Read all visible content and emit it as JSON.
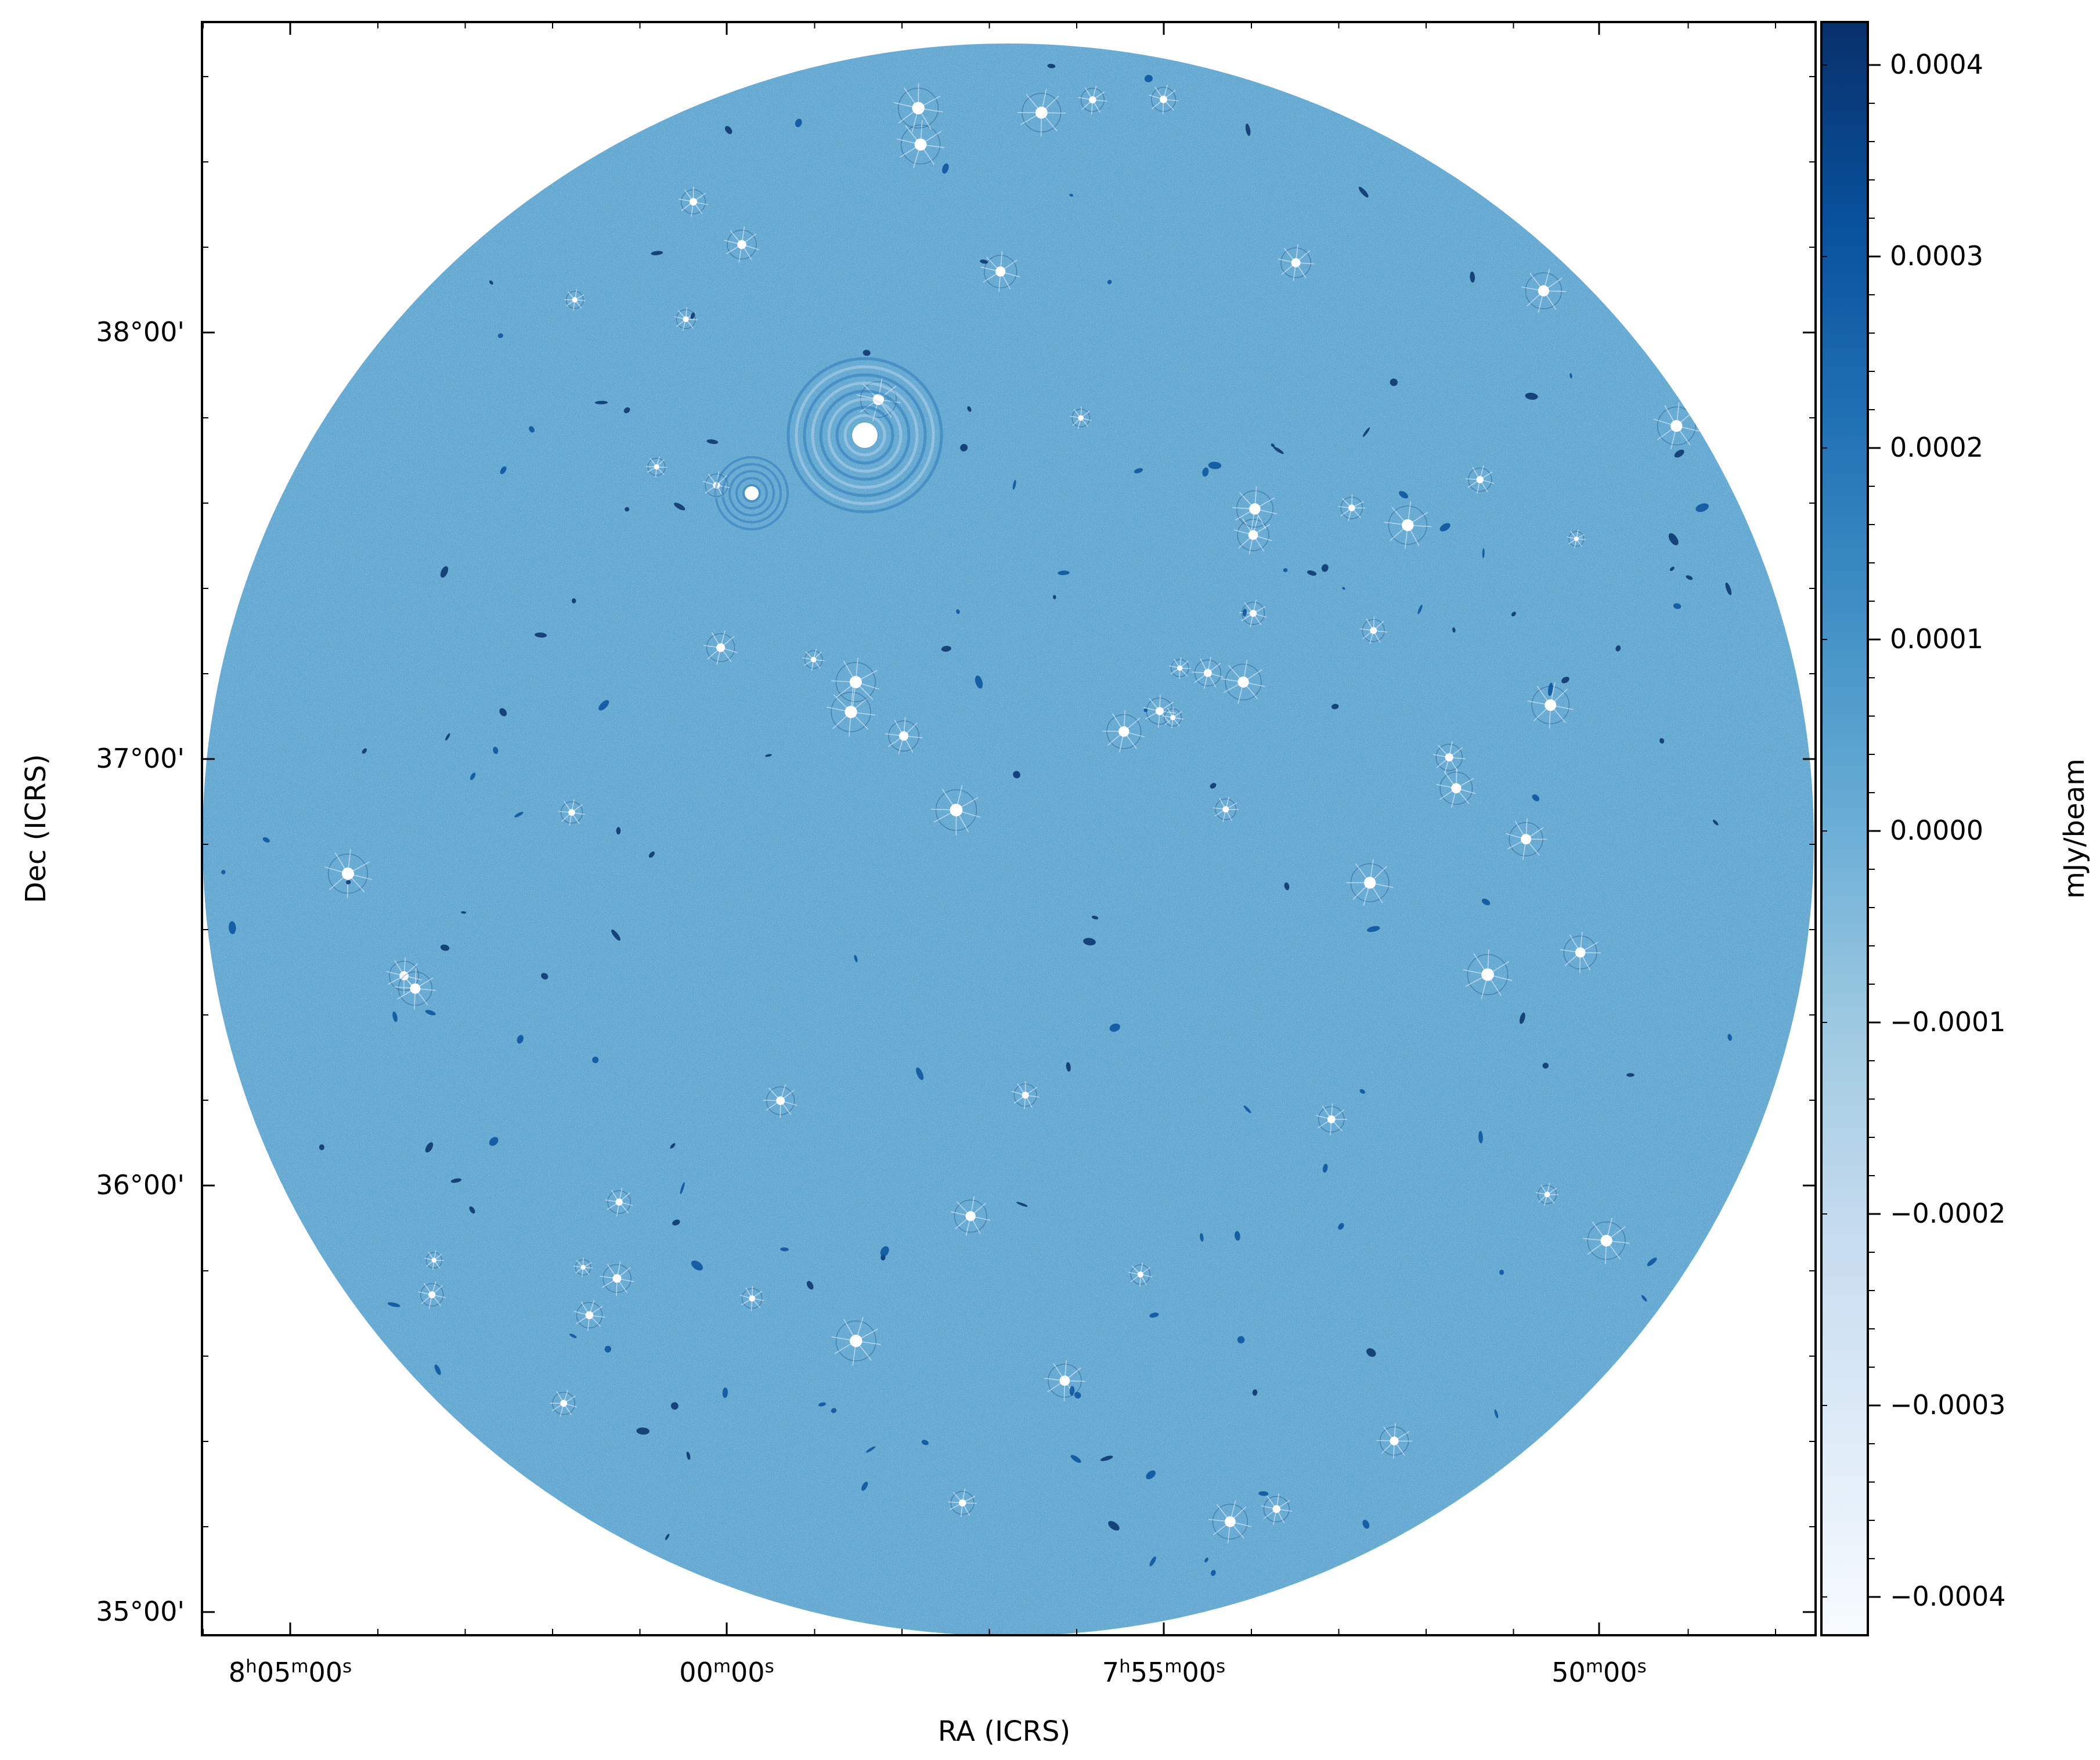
{
  "image": {
    "description_type": "radio astronomy continuum image",
    "colormap": "Blues",
    "cmap_low": "#f7fbff",
    "cmap_high": "#08306b",
    "field_shape": "circle",
    "background": "#ffffff",
    "x_axis": {
      "label": "RA (ICRS)",
      "ticks": [
        {
          "h": "8",
          "m": "05",
          "s": "00"
        },
        {
          "h": "",
          "m": "00",
          "s": "00"
        },
        {
          "h": "7",
          "m": "55",
          "s": "00"
        },
        {
          "h": "",
          "m": "50",
          "s": "00"
        }
      ]
    },
    "y_axis": {
      "label": "Dec (ICRS)",
      "ticks": [
        "38°00'",
        "37°00'",
        "36°00'",
        "35°00'"
      ]
    },
    "colorbar": {
      "label": "mJy/beam",
      "ticks": [
        "0.0004",
        "0.0003",
        "0.0002",
        "0.0001",
        "0.0000",
        "−0.0001",
        "−0.0002",
        "−0.0003",
        "−0.0004"
      ],
      "vmin": -0.00042,
      "vmax": 0.00042
    }
  }
}
